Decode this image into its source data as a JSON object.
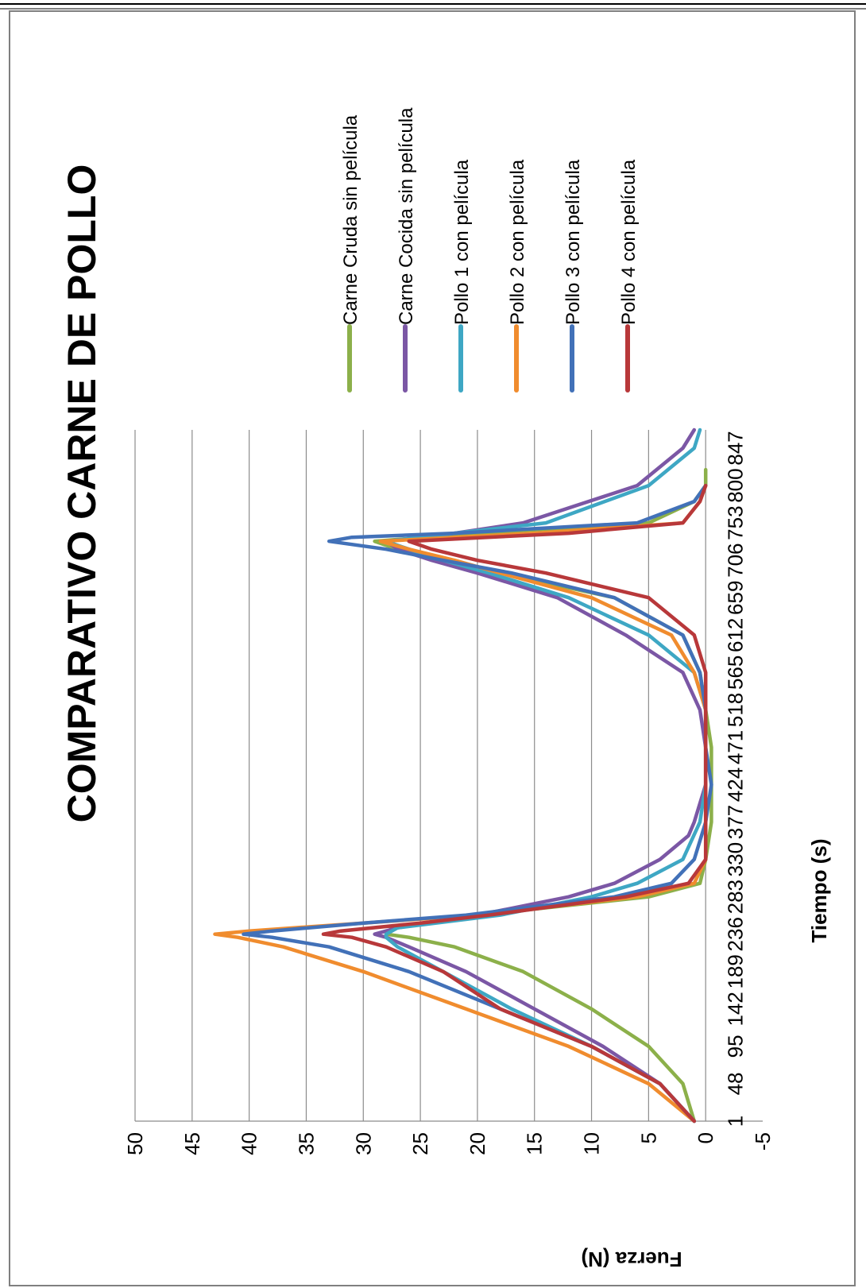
{
  "chart_data": {
    "type": "line",
    "title": "COMPARATIVO CARNE DE POLLO",
    "xlabel": "Tiempo (s)",
    "ylabel": "Fuerza (N)",
    "ylim": [
      -5,
      50
    ],
    "xlim": [
      1,
      870
    ],
    "y_ticks": [
      "50",
      "45",
      "40",
      "35",
      "30",
      "25",
      "20",
      "15",
      "10",
      "5",
      "0",
      "-5"
    ],
    "x_ticks": [
      "1",
      "48",
      "95",
      "142",
      "189",
      "236",
      "283",
      "330",
      "377",
      "424",
      "471",
      "518",
      "565",
      "612",
      "659",
      "706",
      "753",
      "800",
      "847"
    ],
    "grid": "horizontal",
    "legend_position": "right",
    "orientation": "rotated 90 degrees counter-clockwise",
    "series": [
      {
        "name": "Carne Cruda sin película",
        "color": "#8cb04a",
        "x": [
          1,
          48,
          95,
          142,
          189,
          220,
          232,
          236,
          244,
          260,
          283,
          300,
          330,
          377,
          424,
          471,
          518,
          565,
          612,
          659,
          690,
          706,
          720,
          730,
          740,
          753,
          780,
          800,
          820
        ],
        "y": [
          1,
          2,
          5,
          10,
          16,
          22,
          26,
          28,
          27.5,
          20,
          5,
          0.5,
          0,
          -0.5,
          -0.5,
          -0.5,
          0,
          0.5,
          2,
          8,
          18,
          23,
          27,
          29,
          20,
          5,
          1,
          0,
          0
        ]
      },
      {
        "name": "Carne Cocida sin película",
        "color": "#7b57a5",
        "x": [
          1,
          48,
          95,
          142,
          189,
          220,
          232,
          236,
          244,
          260,
          283,
          300,
          330,
          360,
          377,
          424,
          471,
          518,
          565,
          612,
          659,
          690,
          706,
          720,
          730,
          740,
          753,
          800,
          847,
          870
        ],
        "y": [
          1,
          4,
          9,
          15,
          21,
          26,
          28,
          29,
          27,
          20,
          12,
          8,
          4,
          1.5,
          1,
          0,
          0,
          0.5,
          2,
          7,
          13,
          20,
          24,
          27,
          28,
          22,
          16,
          6,
          2,
          1
        ]
      },
      {
        "name": "Pollo 1 con película",
        "color": "#3ea7c4",
        "x": [
          1,
          48,
          95,
          142,
          189,
          220,
          232,
          236,
          244,
          260,
          283,
          300,
          330,
          377,
          424,
          471,
          518,
          565,
          612,
          659,
          690,
          706,
          720,
          730,
          740,
          753,
          800,
          847,
          870
        ],
        "y": [
          1,
          4,
          10,
          17,
          23,
          27,
          28,
          28,
          27,
          18,
          10,
          6,
          2,
          0.5,
          0,
          0,
          0,
          1,
          5,
          12,
          19,
          23,
          26,
          28,
          22,
          14,
          5,
          1,
          0.5
        ]
      },
      {
        "name": "Pollo 2 con película",
        "color": "#f08c2e",
        "x": [
          1,
          48,
          95,
          142,
          189,
          220,
          232,
          236,
          240,
          250,
          260,
          283,
          300,
          330,
          377,
          424,
          471,
          518,
          565,
          612,
          659,
          690,
          706,
          720,
          730,
          740,
          753,
          780,
          800
        ],
        "y": [
          1,
          5,
          12,
          21,
          30,
          37,
          41,
          43,
          40,
          30,
          20,
          6,
          1,
          0,
          0,
          0,
          0,
          0,
          1,
          3,
          10,
          18,
          22,
          26,
          28.5,
          15,
          2,
          0.5,
          0
        ]
      },
      {
        "name": "Pollo 3 con película",
        "color": "#4271b8",
        "x": [
          1,
          48,
          95,
          142,
          189,
          220,
          232,
          236,
          240,
          250,
          260,
          283,
          300,
          330,
          377,
          424,
          471,
          518,
          565,
          612,
          659,
          690,
          706,
          720,
          730,
          735,
          740,
          753,
          780,
          800
        ],
        "y": [
          1,
          4,
          10,
          18,
          26,
          33,
          38,
          40.5,
          38,
          30,
          21,
          8,
          3,
          1,
          0,
          -0.5,
          0,
          0,
          0.5,
          2,
          8,
          17,
          23,
          28,
          33,
          31,
          22,
          6,
          1,
          0
        ]
      },
      {
        "name": "Pollo 4 con película",
        "color": "#b8383a",
        "x": [
          1,
          48,
          95,
          142,
          189,
          220,
          232,
          236,
          240,
          250,
          260,
          283,
          300,
          330,
          377,
          424,
          471,
          518,
          565,
          612,
          659,
          690,
          706,
          720,
          730,
          740,
          753,
          780,
          800
        ],
        "y": [
          1,
          4,
          10,
          18,
          23,
          28,
          31,
          33.5,
          32,
          25,
          19,
          7,
          1.5,
          0,
          0,
          0,
          0,
          0,
          0,
          1,
          5,
          14,
          20,
          24,
          26,
          12,
          2,
          0.5,
          0
        ]
      }
    ]
  }
}
